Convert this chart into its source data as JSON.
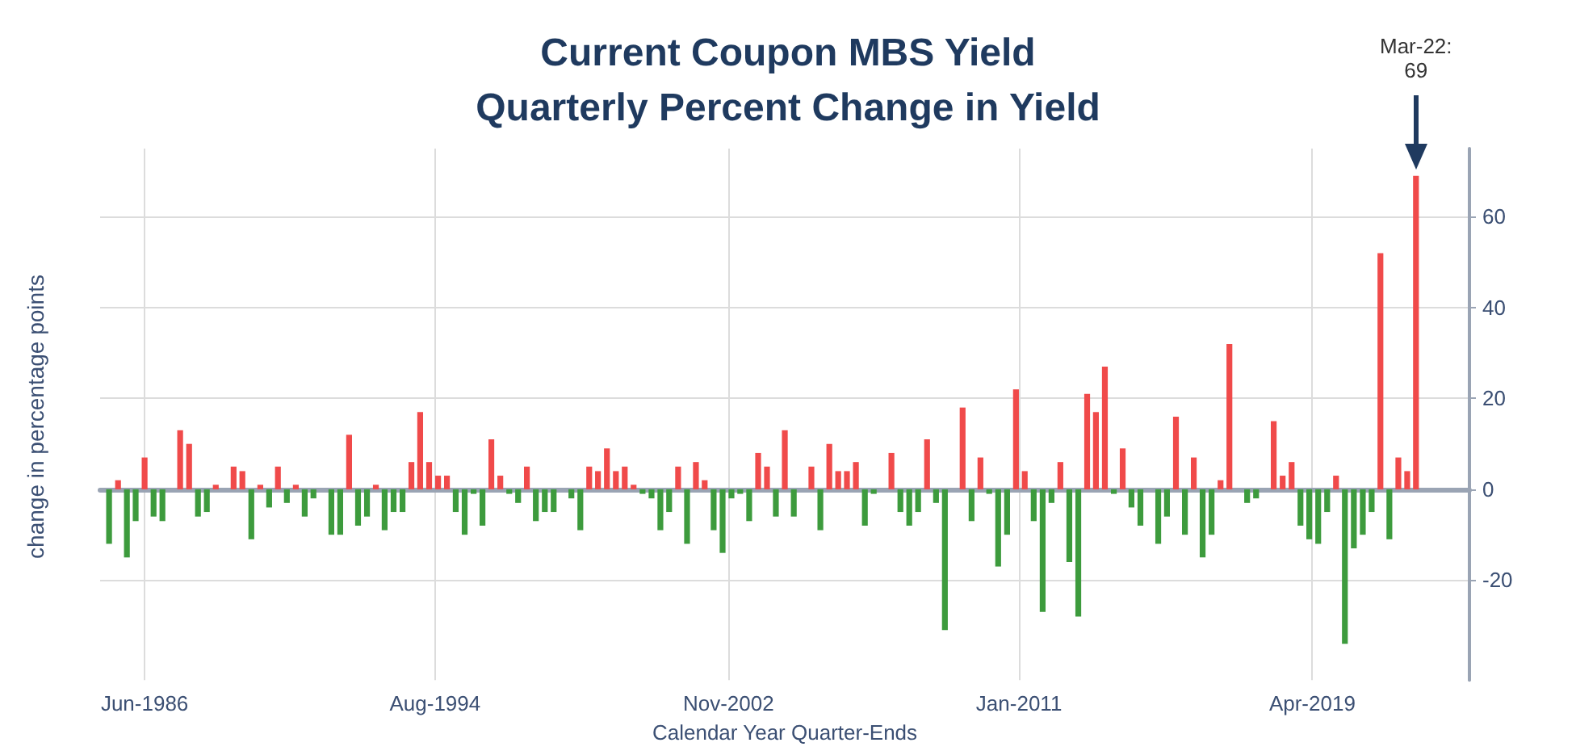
{
  "chart_data": {
    "type": "bar",
    "title": "Current Coupon MBS Yield",
    "subtitle": "Quarterly Percent Change in Yield",
    "xlabel": "Calendar Year Quarter-Ends",
    "ylabel": "change in percentage points",
    "x": [
      "1985-06",
      "1985-09",
      "1985-12",
      "1986-03",
      "1986-06",
      "1986-09",
      "1986-12",
      "1987-03",
      "1987-06",
      "1987-09",
      "1987-12",
      "1988-03",
      "1988-06",
      "1988-09",
      "1988-12",
      "1989-03",
      "1989-06",
      "1989-09",
      "1989-12",
      "1990-03",
      "1990-06",
      "1990-09",
      "1990-12",
      "1991-03",
      "1991-06",
      "1991-09",
      "1991-12",
      "1992-03",
      "1992-06",
      "1992-09",
      "1992-12",
      "1993-03",
      "1993-06",
      "1993-09",
      "1993-12",
      "1994-03",
      "1994-06",
      "1994-09",
      "1994-12",
      "1995-03",
      "1995-06",
      "1995-09",
      "1995-12",
      "1996-03",
      "1996-06",
      "1996-09",
      "1996-12",
      "1997-03",
      "1997-06",
      "1997-09",
      "1997-12",
      "1998-03",
      "1998-06",
      "1998-09",
      "1998-12",
      "1999-03",
      "1999-06",
      "1999-09",
      "1999-12",
      "2000-03",
      "2000-06",
      "2000-09",
      "2000-12",
      "2001-03",
      "2001-06",
      "2001-09",
      "2001-12",
      "2002-03",
      "2002-06",
      "2002-09",
      "2002-12",
      "2003-03",
      "2003-06",
      "2003-09",
      "2003-12",
      "2004-03",
      "2004-06",
      "2004-09",
      "2004-12",
      "2005-03",
      "2005-06",
      "2005-09",
      "2005-12",
      "2006-03",
      "2006-06",
      "2006-09",
      "2006-12",
      "2007-03",
      "2007-06",
      "2007-09",
      "2007-12",
      "2008-03",
      "2008-06",
      "2008-09",
      "2008-12",
      "2009-03",
      "2009-06",
      "2009-09",
      "2009-12",
      "2010-03",
      "2010-06",
      "2010-09",
      "2010-12",
      "2011-03",
      "2011-06",
      "2011-09",
      "2011-12",
      "2012-03",
      "2012-06",
      "2012-09",
      "2012-12",
      "2013-03",
      "2013-06",
      "2013-09",
      "2013-12",
      "2014-03",
      "2014-06",
      "2014-09",
      "2014-12",
      "2015-03",
      "2015-06",
      "2015-09",
      "2015-12",
      "2016-03",
      "2016-06",
      "2016-09",
      "2016-12",
      "2017-03",
      "2017-06",
      "2017-09",
      "2017-12",
      "2018-03",
      "2018-06",
      "2018-09",
      "2018-12",
      "2019-03",
      "2019-06",
      "2019-09",
      "2019-12",
      "2020-03",
      "2020-06",
      "2020-09",
      "2020-12",
      "2021-03",
      "2021-06",
      "2021-09",
      "2021-12",
      "2022-03"
    ],
    "values": [
      -12,
      2,
      -15,
      -7,
      7,
      -6,
      -7,
      0,
      13,
      10,
      -6,
      -5,
      1,
      0,
      5,
      4,
      -11,
      1,
      -4,
      5,
      -3,
      1,
      -6,
      -2,
      0,
      -10,
      -10,
      12,
      -8,
      -6,
      1,
      -9,
      -5,
      -5,
      6,
      17,
      6,
      3,
      3,
      -5,
      -10,
      -1,
      -8,
      11,
      3,
      -1,
      -3,
      5,
      -7,
      -5,
      -5,
      0,
      -2,
      -9,
      5,
      4,
      9,
      4,
      5,
      1,
      -1,
      -2,
      -9,
      -5,
      5,
      -12,
      6,
      2,
      -9,
      -14,
      -2,
      -1,
      -7,
      8,
      5,
      -6,
      13,
      -6,
      0,
      5,
      -9,
      10,
      4,
      4,
      6,
      -8,
      -1,
      0,
      8,
      -5,
      -8,
      -5,
      11,
      -3,
      -31,
      0,
      18,
      -7,
      7,
      -1,
      -17,
      -10,
      22,
      4,
      -7,
      -27,
      -3,
      6,
      -16,
      -28,
      21,
      17,
      27,
      -1,
      9,
      -4,
      -8,
      0,
      -12,
      -6,
      16,
      -10,
      7,
      -15,
      -10,
      2,
      32,
      0,
      -3,
      -2,
      0,
      15,
      3,
      6,
      -8,
      -11,
      -12,
      -5,
      3,
      -34,
      -13,
      -10,
      -5,
      52,
      -11,
      7,
      4,
      69
    ],
    "colors": [
      "#3d9b3d",
      "#f04a4a",
      "#3d9b3d",
      "#3d9b3d",
      "#f04a4a",
      "#3d9b3d",
      "#3d9b3d",
      "#f04a4a",
      "#f04a4a",
      "#f04a4a",
      "#3d9b3d",
      "#3d9b3d",
      "#f04a4a",
      "#f04a4a",
      "#f04a4a",
      "#f04a4a",
      "#3d9b3d",
      "#f04a4a",
      "#3d9b3d",
      "#f04a4a",
      "#3d9b3d",
      "#f04a4a",
      "#3d9b3d",
      "#3d9b3d",
      "#f04a4a",
      "#3d9b3d",
      "#3d9b3d",
      "#f04a4a",
      "#3d9b3d",
      "#3d9b3d",
      "#f04a4a",
      "#3d9b3d",
      "#3d9b3d",
      "#3d9b3d",
      "#f04a4a",
      "#f04a4a",
      "#f04a4a",
      "#f04a4a",
      "#f04a4a",
      "#3d9b3d",
      "#3d9b3d",
      "#3d9b3d",
      "#3d9b3d",
      "#f04a4a",
      "#f04a4a",
      "#3d9b3d",
      "#3d9b3d",
      "#f04a4a",
      "#3d9b3d",
      "#3d9b3d",
      "#3d9b3d",
      "#f04a4a",
      "#3d9b3d",
      "#3d9b3d",
      "#f04a4a",
      "#f04a4a",
      "#f04a4a",
      "#f04a4a",
      "#f04a4a",
      "#f04a4a",
      "#3d9b3d",
      "#3d9b3d",
      "#3d9b3d",
      "#3d9b3d",
      "#f04a4a",
      "#3d9b3d",
      "#f04a4a",
      "#f04a4a",
      "#3d9b3d",
      "#3d9b3d",
      "#3d9b3d",
      "#3d9b3d",
      "#3d9b3d",
      "#f04a4a",
      "#f04a4a",
      "#3d9b3d",
      "#f04a4a",
      "#3d9b3d",
      "#f04a4a",
      "#f04a4a",
      "#3d9b3d",
      "#f04a4a",
      "#f04a4a",
      "#f04a4a",
      "#f04a4a",
      "#3d9b3d",
      "#3d9b3d",
      "#f04a4a",
      "#f04a4a",
      "#3d9b3d",
      "#3d9b3d",
      "#3d9b3d",
      "#f04a4a",
      "#3d9b3d",
      "#3d9b3d",
      "#f04a4a",
      "#f04a4a",
      "#3d9b3d",
      "#f04a4a",
      "#3d9b3d",
      "#3d9b3d",
      "#3d9b3d",
      "#f04a4a",
      "#f04a4a",
      "#3d9b3d",
      "#3d9b3d",
      "#3d9b3d",
      "#f04a4a",
      "#3d9b3d",
      "#3d9b3d",
      "#f04a4a",
      "#f04a4a",
      "#f04a4a",
      "#3d9b3d",
      "#f04a4a",
      "#3d9b3d",
      "#3d9b3d",
      "#f04a4a",
      "#3d9b3d",
      "#3d9b3d",
      "#f04a4a",
      "#3d9b3d",
      "#f04a4a",
      "#3d9b3d",
      "#3d9b3d",
      "#f04a4a",
      "#f04a4a",
      "#f04a4a",
      "#3d9b3d",
      "#3d9b3d",
      "#f04a4a",
      "#f04a4a",
      "#f04a4a",
      "#f04a4a",
      "#3d9b3d",
      "#3d9b3d",
      "#3d9b3d",
      "#3d9b3d",
      "#f04a4a",
      "#3d9b3d",
      "#3d9b3d",
      "#3d9b3d",
      "#3d9b3d",
      "#f04a4a",
      "#3d9b3d",
      "#f04a4a",
      "#f04a4a",
      "#f04a4a"
    ],
    "xlim": [
      "1985-03",
      "2023-09"
    ],
    "xticks": [
      {
        "value": "1986-06",
        "label": "Jun-1986"
      },
      {
        "value": "1994-08",
        "label": "Aug-1994"
      },
      {
        "value": "2002-11",
        "label": "Nov-2002"
      },
      {
        "value": "2011-01",
        "label": "Jan-2011"
      },
      {
        "value": "2019-04",
        "label": "Apr-2019"
      }
    ],
    "ylim": [
      -42,
      75
    ],
    "yticks": [
      -20,
      0,
      20,
      40,
      60
    ],
    "grid": true,
    "annotations": [
      "Mar-22:\n69"
    ]
  }
}
